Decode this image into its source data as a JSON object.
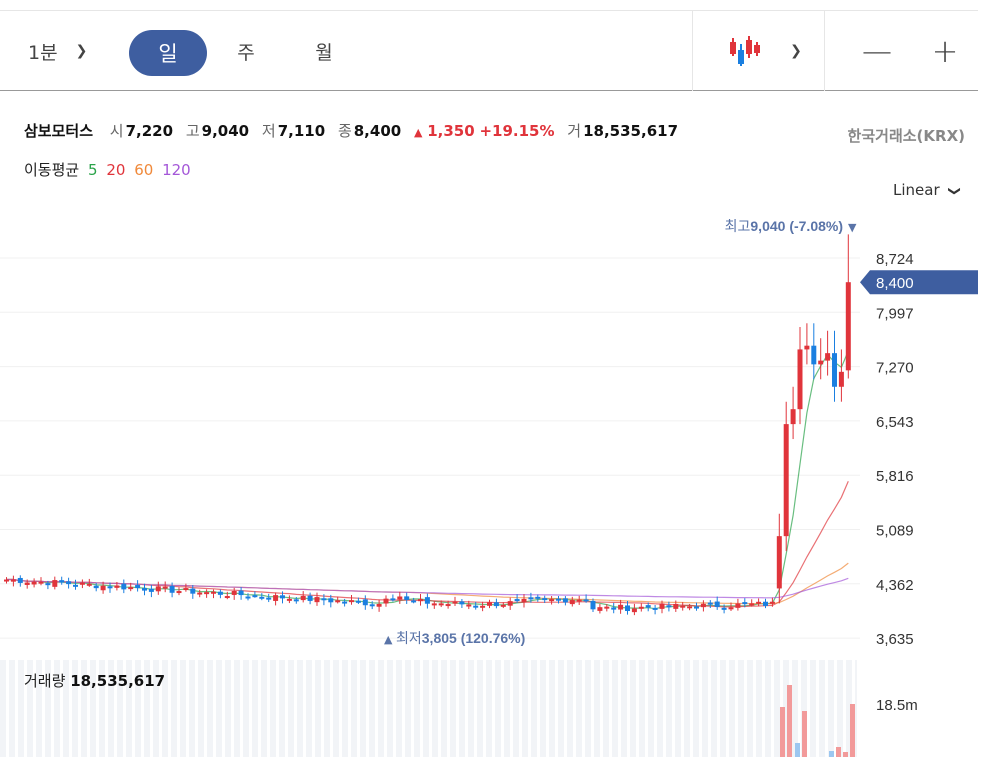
{
  "toolbar": {
    "interval": "1분",
    "tabs": [
      "일",
      "주",
      "월"
    ],
    "zoom_out": "—",
    "zoom_in": "+"
  },
  "stock": {
    "name": "삼보모터스",
    "open_label": "시",
    "open": "7,220",
    "high_label": "고",
    "high": "9,040",
    "low_label": "저",
    "low": "7,110",
    "close_label": "종",
    "close": "8,400",
    "change": "1,350",
    "change_pct": "+19.15%",
    "volume_label": "거",
    "volume": "18,535,617",
    "exchange": "한국거래소(KRX)"
  },
  "ma_legend": {
    "title": "이동평균",
    "periods": [
      {
        "label": "5",
        "color": "#2aa34a"
      },
      {
        "label": "20",
        "color": "#e0343b"
      },
      {
        "label": "60",
        "color": "#f0893a"
      },
      {
        "label": "120",
        "color": "#a457d8"
      }
    ]
  },
  "scale": "Linear",
  "annotations": {
    "high_prefix": "최고",
    "high_text": "9,040 (-7.08%)",
    "low_prefix": "최저",
    "low_text": "3,805 (120.76%)"
  },
  "current_price_tag": "8,400",
  "y_ticks": [
    "8,724",
    "7,997",
    "7,270",
    "6,543",
    "5,816",
    "5,089",
    "4,362",
    "3,635"
  ],
  "volume_panel": {
    "title": "거래량",
    "value": "18,535,617",
    "tick": "18.5m"
  },
  "colors": {
    "up": "#e0343b",
    "down": "#1a7fe0",
    "accent": "#3e5ea0"
  }
}
